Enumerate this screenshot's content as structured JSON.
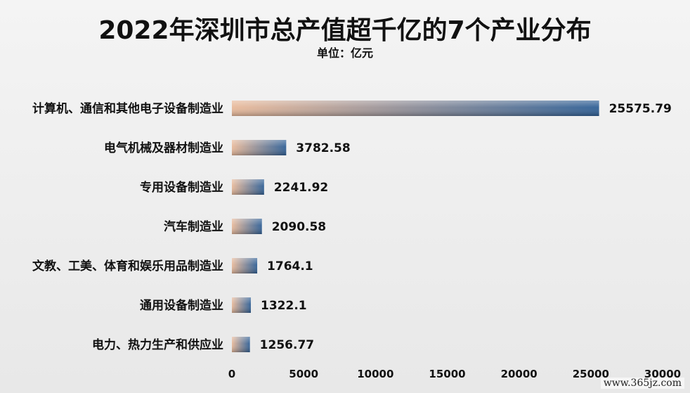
{
  "title": "2022年深圳市总产值超千亿的7个产业分布",
  "unit": "单位：亿元",
  "watermark": "www.365jz.com",
  "colors": {
    "bar_start": "#e8b99a",
    "bar_end": "#2f5f95"
  },
  "chart_data": {
    "type": "bar",
    "orientation": "horizontal",
    "categories": [
      "计算机、通信和其他电子设备制造业",
      "电气机械及器材制造业",
      "专用设备制造业",
      "汽车制造业",
      "文教、工美、体育和娱乐用品制造业",
      "通用设备制造业",
      "电力、热力生产和供应业"
    ],
    "values": [
      25575.79,
      3782.58,
      2241.92,
      2090.58,
      1764.1,
      1322.1,
      1256.77
    ],
    "value_labels": [
      "25575.79",
      "3782.58",
      "2241.92",
      "2090.58",
      "1764.1",
      "1322.1",
      "1256.77"
    ],
    "xlim": [
      0,
      30000
    ],
    "xticks": [
      0,
      5000,
      10000,
      15000,
      20000,
      25000,
      30000
    ],
    "xlabel": "",
    "ylabel": "",
    "grid": false,
    "legend": "none"
  }
}
